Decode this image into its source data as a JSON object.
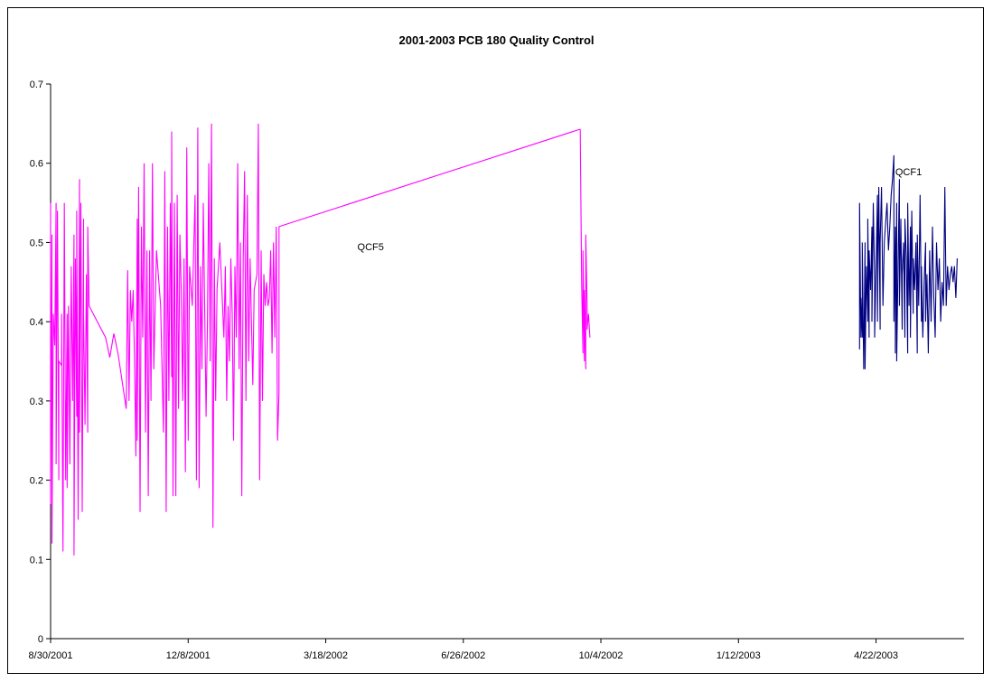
{
  "chart_data": {
    "type": "line",
    "title": "2001-2003 PCB 180 Quality Control",
    "xlabel": "",
    "ylabel": "",
    "ylim": [
      0,
      0.7
    ],
    "yticks": [
      "0",
      "0.1",
      "0.2",
      "0.3",
      "0.4",
      "0.5",
      "0.6",
      "0.7"
    ],
    "xlim": [
      "2001-08-30",
      "2003-06-25"
    ],
    "xticks": [
      "8/30/2001",
      "12/8/2001",
      "3/18/2002",
      "6/26/2002",
      "10/4/2002",
      "1/12/2003",
      "4/22/2003"
    ],
    "grid": false,
    "legend": "none",
    "annotations": [
      {
        "text": "QCF5",
        "x": "2002-04-10",
        "y": 0.49
      },
      {
        "text": "QCF1",
        "x": "2003-05-06",
        "y": 0.585
      }
    ],
    "series": [
      {
        "name": "QCF5",
        "color": "#ff00ff",
        "points": [
          [
            "2001-08-30",
            0.55
          ],
          [
            "2001-08-30",
            0.17
          ],
          [
            "2001-08-31",
            0.51
          ],
          [
            "2001-08-31",
            0.12
          ],
          [
            "2001-09-01",
            0.41
          ],
          [
            "2001-09-02",
            0.37
          ],
          [
            "2001-09-03",
            0.55
          ],
          [
            "2001-09-03",
            0.22
          ],
          [
            "2001-09-04",
            0.54
          ],
          [
            "2001-09-05",
            0.2
          ],
          [
            "2001-09-05",
            0.35
          ],
          [
            "2001-09-07",
            0.345
          ],
          [
            "2001-09-07",
            0.41
          ],
          [
            "2001-09-08",
            0.11
          ],
          [
            "2001-09-09",
            0.55
          ],
          [
            "2001-09-10",
            0.2
          ],
          [
            "2001-09-11",
            0.41
          ],
          [
            "2001-09-11",
            0.19
          ],
          [
            "2001-09-12",
            0.42
          ],
          [
            "2001-09-13",
            0.22
          ],
          [
            "2001-09-14",
            0.47
          ],
          [
            "2001-09-15",
            0.3
          ],
          [
            "2001-09-16",
            0.51
          ],
          [
            "2001-09-16",
            0.105
          ],
          [
            "2001-09-17",
            0.48
          ],
          [
            "2001-09-18",
            0.28
          ],
          [
            "2001-09-18",
            0.54
          ],
          [
            "2001-09-19",
            0.15
          ],
          [
            "2001-09-20",
            0.58
          ],
          [
            "2001-09-20",
            0.26
          ],
          [
            "2001-09-21",
            0.55
          ],
          [
            "2001-09-22",
            0.16
          ],
          [
            "2001-09-23",
            0.53
          ],
          [
            "2001-09-23",
            0.41
          ],
          [
            "2001-09-24",
            0.27
          ],
          [
            "2001-09-25",
            0.46
          ],
          [
            "2001-09-26",
            0.26
          ],
          [
            "2001-09-26",
            0.52
          ],
          [
            "2001-09-27",
            0.42
          ],
          [
            "2001-10-09",
            0.38
          ],
          [
            "2001-10-12",
            0.355
          ],
          [
            "2001-10-15",
            0.385
          ],
          [
            "2001-10-18",
            0.36
          ],
          [
            "2001-10-24",
            0.29
          ],
          [
            "2001-10-25",
            0.465
          ],
          [
            "2001-10-26",
            0.3
          ],
          [
            "2001-10-27",
            0.44
          ],
          [
            "2001-10-28",
            0.4
          ],
          [
            "2001-10-29",
            0.44
          ],
          [
            "2001-10-30",
            0.35
          ],
          [
            "2001-10-31",
            0.23
          ],
          [
            "2001-11-01",
            0.53
          ],
          [
            "2001-11-01",
            0.25
          ],
          [
            "2001-11-02",
            0.57
          ],
          [
            "2001-11-03",
            0.16
          ],
          [
            "2001-11-04",
            0.52
          ],
          [
            "2001-11-05",
            0.38
          ],
          [
            "2001-11-06",
            0.6
          ],
          [
            "2001-11-07",
            0.26
          ],
          [
            "2001-11-08",
            0.49
          ],
          [
            "2001-11-09",
            0.18
          ],
          [
            "2001-11-10",
            0.49
          ],
          [
            "2001-11-11",
            0.3
          ],
          [
            "2001-11-12",
            0.6
          ],
          [
            "2001-11-13",
            0.34
          ],
          [
            "2001-11-15",
            0.49
          ],
          [
            "2001-11-18",
            0.42
          ],
          [
            "2001-11-20",
            0.26
          ],
          [
            "2001-11-21",
            0.59
          ],
          [
            "2001-11-22",
            0.16
          ],
          [
            "2001-11-23",
            0.52
          ],
          [
            "2001-11-24",
            0.3
          ],
          [
            "2001-11-25",
            0.55
          ],
          [
            "2001-11-26",
            0.33
          ],
          [
            "2001-11-26",
            0.64
          ],
          [
            "2001-11-27",
            0.18
          ],
          [
            "2001-11-28",
            0.55
          ],
          [
            "2001-11-29",
            0.18
          ],
          [
            "2001-11-30",
            0.56
          ],
          [
            "2001-12-01",
            0.29
          ],
          [
            "2001-12-02",
            0.51
          ],
          [
            "2001-12-03",
            0.44
          ],
          [
            "2001-12-04",
            0.3
          ],
          [
            "2001-12-05",
            0.48
          ],
          [
            "2001-12-06",
            0.21
          ],
          [
            "2001-12-07",
            0.62
          ],
          [
            "2001-12-08",
            0.25
          ],
          [
            "2001-12-09",
            0.47
          ],
          [
            "2001-12-11",
            0.42
          ],
          [
            "2001-12-13",
            0.56
          ],
          [
            "2001-12-14",
            0.2
          ],
          [
            "2001-12-15",
            0.645
          ],
          [
            "2001-12-16",
            0.19
          ],
          [
            "2001-12-17",
            0.47
          ],
          [
            "2001-12-18",
            0.34
          ],
          [
            "2001-12-19",
            0.55
          ],
          [
            "2001-12-20",
            0.42
          ],
          [
            "2001-12-21",
            0.28
          ],
          [
            "2001-12-22",
            0.4
          ],
          [
            "2001-12-23",
            0.6
          ],
          [
            "2001-12-24",
            0.35
          ],
          [
            "2001-12-25",
            0.65
          ],
          [
            "2001-12-26",
            0.14
          ],
          [
            "2001-12-27",
            0.48
          ],
          [
            "2001-12-28",
            0.3
          ],
          [
            "2001-12-29",
            0.44
          ],
          [
            "2001-12-31",
            0.5
          ],
          [
            "2002-01-02",
            0.42
          ],
          [
            "2002-01-03",
            0.38
          ],
          [
            "2002-01-04",
            0.47
          ],
          [
            "2002-01-05",
            0.3
          ],
          [
            "2002-01-06",
            0.42
          ],
          [
            "2002-01-07",
            0.35
          ],
          [
            "2002-01-08",
            0.48
          ],
          [
            "2002-01-09",
            0.41
          ],
          [
            "2002-01-10",
            0.25
          ],
          [
            "2002-01-11",
            0.47
          ],
          [
            "2002-01-12",
            0.38
          ],
          [
            "2002-01-13",
            0.6
          ],
          [
            "2002-01-14",
            0.34
          ],
          [
            "2002-01-15",
            0.5
          ],
          [
            "2002-01-16",
            0.18
          ],
          [
            "2002-01-17",
            0.48
          ],
          [
            "2002-01-18",
            0.59
          ],
          [
            "2002-01-19",
            0.3
          ],
          [
            "2002-01-20",
            0.56
          ],
          [
            "2002-01-21",
            0.35
          ],
          [
            "2002-01-22",
            0.48
          ],
          [
            "2002-01-23",
            0.4
          ],
          [
            "2002-01-24",
            0.32
          ],
          [
            "2002-01-25",
            0.44
          ],
          [
            "2002-01-27",
            0.46
          ],
          [
            "2002-01-28",
            0.65
          ],
          [
            "2002-01-29",
            0.2
          ],
          [
            "2002-01-30",
            0.49
          ],
          [
            "2002-01-31",
            0.3
          ],
          [
            "2002-02-01",
            0.46
          ],
          [
            "2002-02-02",
            0.42
          ],
          [
            "2002-02-03",
            0.45
          ],
          [
            "2002-02-04",
            0.42
          ],
          [
            "2002-02-05",
            0.43
          ],
          [
            "2002-02-06",
            0.49
          ],
          [
            "2002-02-07",
            0.36
          ],
          [
            "2002-02-08",
            0.5
          ],
          [
            "2002-02-09",
            0.38
          ],
          [
            "2002-02-10",
            0.52
          ],
          [
            "2002-02-11",
            0.25
          ],
          [
            "2002-02-12",
            0.31
          ],
          [
            "2002-02-12",
            0.52
          ]
        ]
      },
      {
        "name": "QCF5",
        "color": "#ff00ff",
        "points": [
          [
            "2002-09-20",
            0.45
          ],
          [
            "2002-09-21",
            0.36
          ],
          [
            "2002-09-21",
            0.49
          ],
          [
            "2002-09-22",
            0.35
          ],
          [
            "2002-09-22",
            0.44
          ],
          [
            "2002-09-23",
            0.34
          ],
          [
            "2002-09-23",
            0.51
          ],
          [
            "2002-09-24",
            0.42
          ],
          [
            "2002-09-24",
            0.39
          ],
          [
            "2002-09-25",
            0.41
          ],
          [
            "2002-09-26",
            0.38
          ]
        ]
      },
      {
        "name": "QCF1",
        "color": "#000080",
        "points": [
          [
            "2003-04-10",
            0.365
          ],
          [
            "2003-04-10",
            0.55
          ],
          [
            "2003-04-11",
            0.38
          ],
          [
            "2003-04-11",
            0.43
          ],
          [
            "2003-04-12",
            0.38
          ],
          [
            "2003-04-12",
            0.5
          ],
          [
            "2003-04-13",
            0.34
          ],
          [
            "2003-04-14",
            0.5
          ],
          [
            "2003-04-14",
            0.34
          ],
          [
            "2003-04-15",
            0.47
          ],
          [
            "2003-04-16",
            0.4
          ],
          [
            "2003-04-16",
            0.53
          ],
          [
            "2003-04-17",
            0.38
          ],
          [
            "2003-04-17",
            0.49
          ],
          [
            "2003-04-18",
            0.44
          ],
          [
            "2003-04-19",
            0.52
          ],
          [
            "2003-04-19",
            0.4
          ],
          [
            "2003-04-20",
            0.55
          ],
          [
            "2003-04-21",
            0.45
          ],
          [
            "2003-04-21",
            0.38
          ],
          [
            "2003-04-22",
            0.47
          ],
          [
            "2003-04-23",
            0.56
          ],
          [
            "2003-04-23",
            0.4
          ],
          [
            "2003-04-24",
            0.57
          ],
          [
            "2003-04-25",
            0.39
          ],
          [
            "2003-04-25",
            0.5
          ],
          [
            "2003-04-26",
            0.57
          ],
          [
            "2003-04-27",
            0.42
          ],
          [
            "2003-04-28",
            0.5
          ],
          [
            "2003-04-30",
            0.55
          ],
          [
            "2003-05-01",
            0.49
          ],
          [
            "2003-05-02",
            0.52
          ],
          [
            "2003-05-03",
            0.56
          ],
          [
            "2003-05-04",
            0.58
          ],
          [
            "2003-05-05",
            0.61
          ],
          [
            "2003-05-05",
            0.4
          ],
          [
            "2003-05-06",
            0.52
          ],
          [
            "2003-05-06",
            0.36
          ],
          [
            "2003-05-07",
            0.55
          ],
          [
            "2003-05-07",
            0.35
          ],
          [
            "2003-05-08",
            0.47
          ],
          [
            "2003-05-09",
            0.58
          ],
          [
            "2003-05-09",
            0.42
          ],
          [
            "2003-05-10",
            0.53
          ],
          [
            "2003-05-11",
            0.39
          ],
          [
            "2003-05-11",
            0.46
          ],
          [
            "2003-05-12",
            0.5
          ],
          [
            "2003-05-13",
            0.38
          ],
          [
            "2003-05-13",
            0.53
          ],
          [
            "2003-05-14",
            0.48
          ],
          [
            "2003-05-15",
            0.36
          ],
          [
            "2003-05-15",
            0.55
          ],
          [
            "2003-05-16",
            0.42
          ],
          [
            "2003-05-17",
            0.52
          ],
          [
            "2003-05-17",
            0.38
          ],
          [
            "2003-05-18",
            0.54
          ],
          [
            "2003-05-19",
            0.41
          ],
          [
            "2003-05-19",
            0.48
          ],
          [
            "2003-05-20",
            0.44
          ],
          [
            "2003-05-21",
            0.5
          ],
          [
            "2003-05-22",
            0.36
          ],
          [
            "2003-05-22",
            0.51
          ],
          [
            "2003-05-23",
            0.42
          ],
          [
            "2003-05-24",
            0.56
          ],
          [
            "2003-05-25",
            0.4
          ],
          [
            "2003-05-25",
            0.47
          ],
          [
            "2003-05-26",
            0.38
          ],
          [
            "2003-05-27",
            0.45
          ],
          [
            "2003-05-28",
            0.5
          ],
          [
            "2003-05-28",
            0.4
          ],
          [
            "2003-05-29",
            0.46
          ],
          [
            "2003-05-30",
            0.36
          ],
          [
            "2003-05-31",
            0.49
          ],
          [
            "2003-06-01",
            0.4
          ],
          [
            "2003-06-02",
            0.52
          ],
          [
            "2003-06-03",
            0.43
          ],
          [
            "2003-06-04",
            0.38
          ],
          [
            "2003-06-05",
            0.5
          ],
          [
            "2003-06-06",
            0.44
          ],
          [
            "2003-06-07",
            0.48
          ],
          [
            "2003-06-08",
            0.4
          ],
          [
            "2003-06-09",
            0.45
          ],
          [
            "2003-06-10",
            0.42
          ],
          [
            "2003-06-11",
            0.57
          ],
          [
            "2003-06-12",
            0.42
          ],
          [
            "2003-06-13",
            0.47
          ],
          [
            "2003-06-14",
            0.44
          ],
          [
            "2003-06-15",
            0.46
          ],
          [
            "2003-06-16",
            0.47
          ],
          [
            "2003-06-17",
            0.45
          ],
          [
            "2003-06-18",
            0.47
          ],
          [
            "2003-06-19",
            0.43
          ],
          [
            "2003-06-20",
            0.48
          ]
        ]
      }
    ]
  }
}
